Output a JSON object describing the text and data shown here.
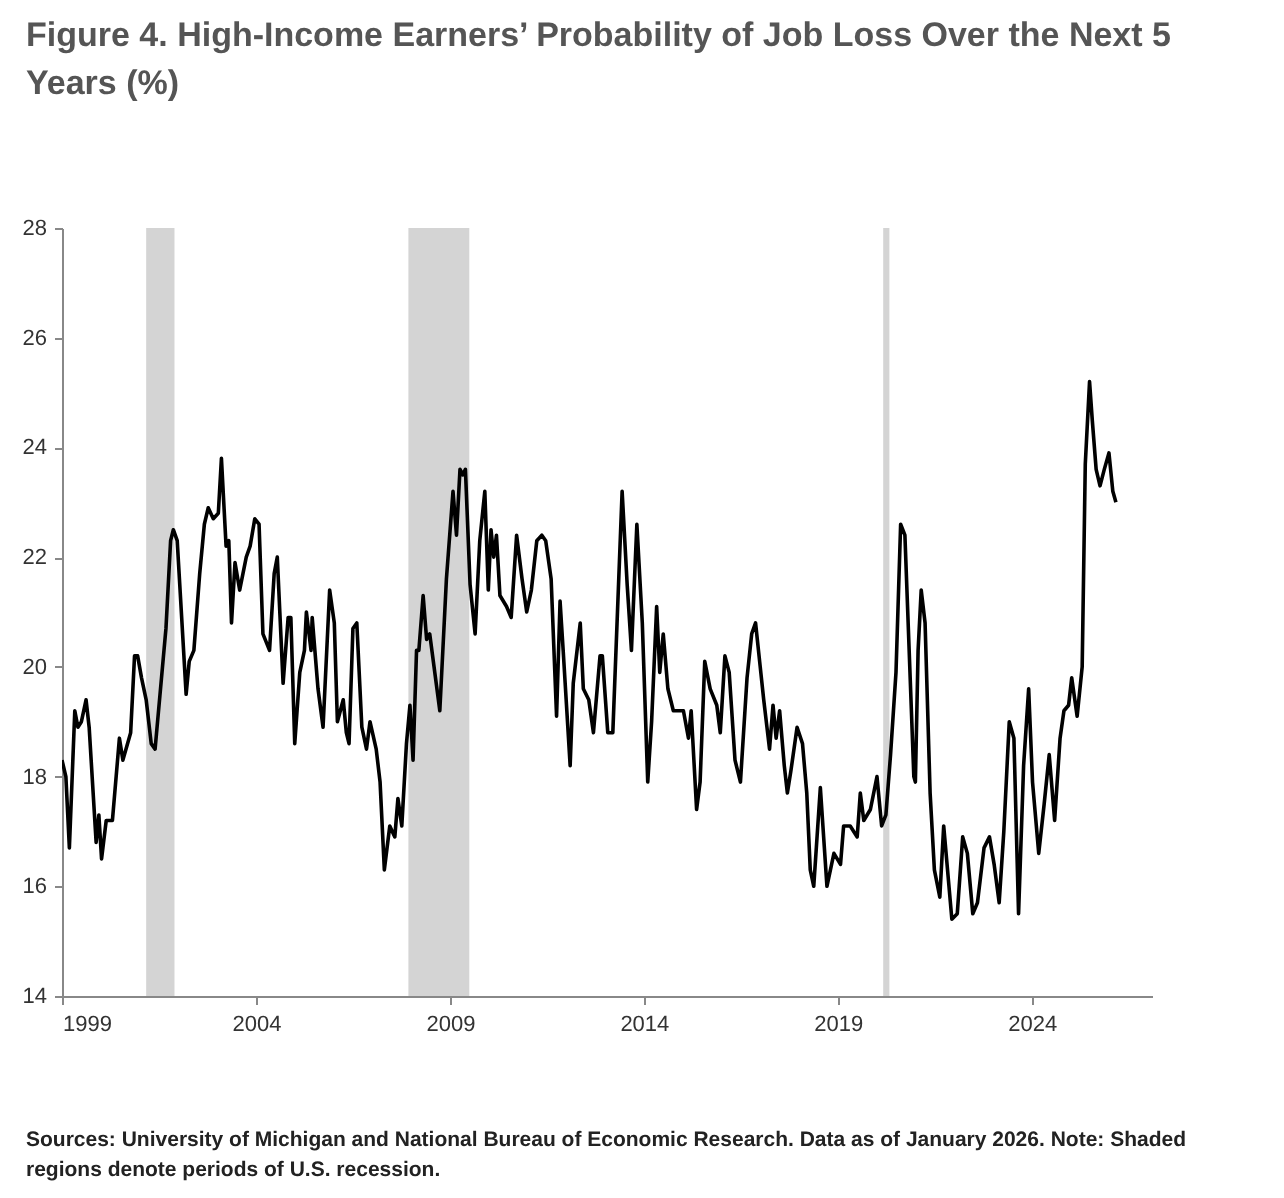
{
  "chart_data": {
    "type": "line",
    "title": "Figure 4. High-Income Earners’ Probability of Job Loss Over the Next 5 Years (%)",
    "annotations": [
      "Sources: University of Michigan and National Bureau of Economic Research. Data as of January 2026. Note: Shaded regions denote periods of U.S. recession."
    ],
    "xlim": [
      1999,
      2027.1
    ],
    "xticks": [
      1999,
      2004,
      2009,
      2014,
      2019,
      2024
    ],
    "ylim": [
      14,
      28
    ],
    "yticks": [
      14,
      16,
      18,
      20,
      22,
      24,
      26,
      28
    ],
    "bands": [
      {
        "axis": "x",
        "from": 2001.17,
        "to": 2001.9,
        "color": "#d4d4d4"
      },
      {
        "axis": "x",
        "from": 2007.93,
        "to": 2009.5,
        "color": "#d4d4d4"
      },
      {
        "axis": "x",
        "from": 2020.17,
        "to": 2020.33,
        "color": "#d4d4d4"
      }
    ],
    "x": [
      1999.0,
      1999.1,
      1999.19,
      1999.33,
      1999.41,
      1999.5,
      1999.62,
      1999.7,
      1999.88,
      1999.95,
      2000.02,
      2000.14,
      2000.3,
      2000.48,
      2000.57,
      2000.77,
      2000.87,
      2000.95,
      2001.05,
      2001.17,
      2001.3,
      2001.4,
      2001.68,
      2001.8,
      2001.87,
      2001.97,
      2002.2,
      2002.28,
      2002.4,
      2002.55,
      2002.67,
      2002.77,
      2002.9,
      2003.03,
      2003.11,
      2003.23,
      2003.3,
      2003.37,
      2003.46,
      2003.58,
      2003.75,
      2003.85,
      2003.97,
      2004.08,
      2004.18,
      2004.35,
      2004.47,
      2004.55,
      2004.7,
      2004.83,
      2004.9,
      2005.0,
      2005.13,
      2005.25,
      2005.3,
      2005.42,
      2005.45,
      2005.6,
      2005.73,
      2005.9,
      2006.02,
      2006.1,
      2006.25,
      2006.33,
      2006.4,
      2006.5,
      2006.6,
      2006.73,
      2006.85,
      2006.94,
      2007.1,
      2007.2,
      2007.31,
      2007.45,
      2007.58,
      2007.66,
      2007.76,
      2007.88,
      2007.97,
      2008.05,
      2008.14,
      2008.2,
      2008.31,
      2008.4,
      2008.48,
      2008.74,
      2008.91,
      2009.08,
      2009.17,
      2009.26,
      2009.33,
      2009.4,
      2009.52,
      2009.65,
      2009.77,
      2009.9,
      2009.99,
      2010.06,
      2010.13,
      2010.2,
      2010.29,
      2010.46,
      2010.58,
      2010.72,
      2010.86,
      2010.98,
      2011.1,
      2011.24,
      2011.37,
      2011.47,
      2011.61,
      2011.75,
      2011.84,
      2011.92,
      2012.1,
      2012.18,
      2012.36,
      2012.44,
      2012.58,
      2012.7,
      2012.87,
      2012.93,
      2013.07,
      2013.2,
      2013.44,
      2013.57,
      2013.68,
      2013.82,
      2013.96,
      2014.1,
      2014.2,
      2014.33,
      2014.41,
      2014.5,
      2014.62,
      2014.76,
      2015.02,
      2015.15,
      2015.22,
      2015.36,
      2015.45,
      2015.57,
      2015.71,
      2015.88,
      2015.97,
      2016.09,
      2016.2,
      2016.35,
      2016.49,
      2016.66,
      2016.78,
      2016.88,
      2017.0,
      2017.09,
      2017.24,
      2017.33,
      2017.41,
      2017.5,
      2017.62,
      2017.7,
      2017.79,
      2017.95,
      2018.09,
      2018.2,
      2018.29,
      2018.38,
      2018.55,
      2018.72,
      2018.9,
      2019.07,
      2019.15,
      2019.32,
      2019.5,
      2019.58,
      2019.67,
      2019.84,
      2020.01,
      2020.13,
      2020.24,
      2020.36,
      2020.5,
      2020.62,
      2020.73,
      2020.96,
      2021.0,
      2021.07,
      2021.15,
      2021.25,
      2021.38,
      2021.49,
      2021.63,
      2021.73,
      2021.94,
      2022.08,
      2022.22,
      2022.34,
      2022.48,
      2022.6,
      2022.77,
      2022.91,
      2023.03,
      2023.16,
      2023.28,
      2023.42,
      2023.54,
      2023.66,
      2023.79,
      2023.92,
      2024.02,
      2024.18,
      2024.32,
      2024.45,
      2024.59,
      2024.73,
      2024.83,
      2024.95,
      2025.03,
      2025.17,
      2025.3,
      2025.38,
      2025.49,
      2025.56,
      2025.66,
      2025.76,
      2025.87,
      2025.99,
      2026.09,
      2026.17
    ],
    "series": [
      {
        "color": "#000000",
        "values": [
          18.3,
          18.0,
          16.7,
          19.2,
          18.9,
          19.0,
          19.4,
          18.9,
          16.8,
          17.3,
          16.5,
          17.2,
          17.2,
          18.7,
          18.3,
          18.8,
          20.2,
          20.2,
          19.8,
          19.4,
          18.6,
          18.5,
          20.7,
          22.3,
          22.5,
          22.3,
          19.5,
          20.1,
          20.3,
          21.7,
          22.6,
          22.9,
          22.7,
          22.8,
          23.8,
          22.2,
          22.3,
          20.8,
          21.9,
          21.4,
          22.0,
          22.2,
          22.7,
          22.6,
          20.6,
          20.3,
          21.7,
          22.0,
          19.7,
          20.9,
          20.9,
          18.6,
          19.9,
          20.3,
          21.0,
          20.3,
          20.9,
          19.6,
          18.9,
          21.4,
          20.8,
          19.0,
          19.4,
          18.8,
          18.6,
          20.7,
          20.8,
          18.9,
          18.5,
          19.0,
          18.5,
          17.9,
          16.3,
          17.1,
          16.9,
          17.6,
          17.1,
          18.6,
          19.3,
          18.3,
          20.3,
          20.3,
          21.3,
          20.5,
          20.6,
          19.2,
          21.6,
          23.2,
          22.4,
          23.6,
          23.5,
          23.6,
          21.5,
          20.6,
          22.3,
          23.2,
          21.4,
          22.5,
          22.0,
          22.4,
          21.3,
          21.1,
          20.9,
          22.4,
          21.6,
          21.0,
          21.4,
          22.3,
          22.4,
          22.3,
          21.6,
          19.1,
          21.2,
          20.3,
          18.2,
          19.7,
          20.8,
          19.6,
          19.4,
          18.8,
          20.2,
          20.2,
          18.8,
          18.8,
          23.2,
          21.5,
          20.3,
          22.6,
          20.8,
          17.9,
          19.0,
          21.1,
          19.9,
          20.6,
          19.6,
          19.2,
          19.2,
          18.7,
          19.2,
          17.4,
          17.9,
          20.1,
          19.6,
          19.3,
          18.8,
          20.2,
          19.9,
          18.3,
          17.9,
          19.8,
          20.6,
          20.8,
          20.0,
          19.4,
          18.5,
          19.3,
          18.7,
          19.2,
          18.2,
          17.7,
          18.1,
          18.9,
          18.6,
          17.7,
          16.3,
          16.0,
          17.8,
          16.0,
          16.6,
          16.4,
          17.1,
          17.1,
          16.9,
          17.7,
          17.2,
          17.4,
          18.0,
          17.1,
          17.3,
          18.4,
          19.9,
          22.6,
          22.4,
          18.0,
          17.9,
          20.3,
          21.4,
          20.8,
          17.7,
          16.3,
          15.8,
          17.1,
          15.4,
          15.5,
          16.9,
          16.6,
          15.5,
          15.7,
          16.7,
          16.9,
          16.4,
          15.7,
          17.0,
          19.0,
          18.7,
          15.5,
          18.2,
          19.6,
          17.9,
          16.6,
          17.5,
          18.4,
          17.2,
          18.7,
          19.2,
          19.3,
          19.8,
          19.1,
          20.0,
          23.7,
          25.2,
          24.5,
          23.6,
          23.3,
          23.6,
          23.9,
          23.2,
          23.0
        ]
      }
    ]
  }
}
